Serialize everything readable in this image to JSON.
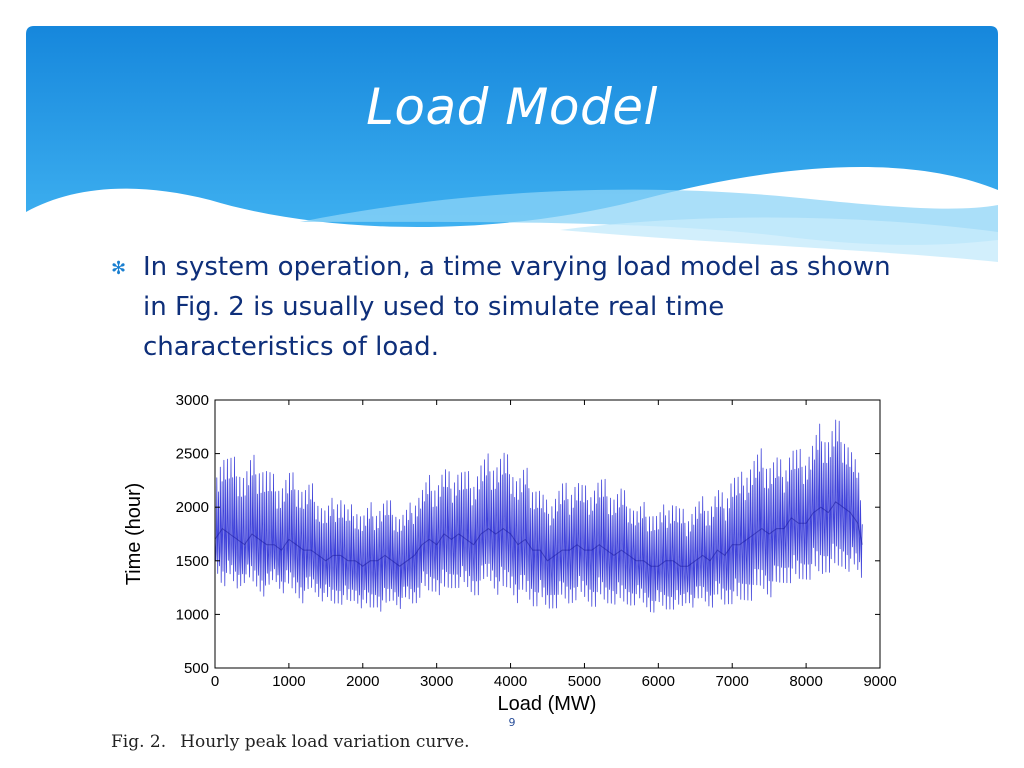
{
  "slide": {
    "title": "Load Model",
    "bullet": "In system operation, a time varying load model as shown in Fig. 2 is usually used to simulate real time characteristics of load.",
    "slide_number": "9",
    "caption_label": "Fig. 2.",
    "caption_text": "Hourly peak load variation curve."
  },
  "colors": {
    "header_blue": "#1e8fdf",
    "header_light": "#6cc4f4",
    "bullet_text": "#0e2f7a",
    "line": "#2b2fd6"
  },
  "chart_data": {
    "type": "line",
    "title": "",
    "xlabel": "Load (MW)",
    "ylabel": "Time (hour)",
    "xlim": [
      0,
      9000
    ],
    "ylim": [
      500,
      3000
    ],
    "xticks": [
      "0",
      "1000",
      "2000",
      "3000",
      "4000",
      "5000",
      "6000",
      "7000",
      "8000",
      "9000"
    ],
    "yticks": [
      "500",
      "1000",
      "1500",
      "2000",
      "2500",
      "3000"
    ],
    "grid": false,
    "series": [
      {
        "x": [
          0,
          100,
          200,
          300,
          400,
          500,
          600,
          700,
          800,
          900,
          1000,
          1100,
          1200,
          1300,
          1400,
          1500,
          1600,
          1700,
          1800,
          1900,
          2000,
          2100,
          2200,
          2300,
          2400,
          2500,
          2600,
          2700,
          2800,
          2900,
          3000,
          3100,
          3200,
          3300,
          3400,
          3500,
          3600,
          3700,
          3800,
          3900,
          4000,
          4100,
          4200,
          4300,
          4400,
          4500,
          4600,
          4700,
          4800,
          4900,
          5000,
          5100,
          5200,
          5300,
          5400,
          5500,
          5600,
          5700,
          5800,
          5900,
          6000,
          6100,
          6200,
          6300,
          6400,
          6500,
          6600,
          6700,
          6800,
          6900,
          7000,
          7100,
          7200,
          7300,
          7400,
          7500,
          7600,
          7700,
          7800,
          7900,
          8000,
          8100,
          8200,
          8300,
          8400,
          8500,
          8600,
          8700,
          8760
        ],
        "upper": [
          2400,
          2550,
          2500,
          2450,
          2350,
          2500,
          2450,
          2400,
          2300,
          2250,
          2350,
          2300,
          2200,
          2250,
          2100,
          2000,
          2100,
          2150,
          2000,
          2050,
          1950,
          2050,
          2000,
          2100,
          2050,
          1950,
          2000,
          2100,
          2200,
          2300,
          2250,
          2400,
          2300,
          2400,
          2350,
          2300,
          2450,
          2500,
          2450,
          2550,
          2450,
          2300,
          2400,
          2250,
          2200,
          2050,
          2150,
          2250,
          2200,
          2300,
          2200,
          2200,
          2300,
          2250,
          2150,
          2200,
          2100,
          2000,
          2050,
          2000,
          1950,
          2050,
          2100,
          2000,
          1950,
          2050,
          2100,
          2050,
          2200,
          2100,
          2350,
          2300,
          2400,
          2500,
          2550,
          2450,
          2500,
          2400,
          2600,
          2550,
          2500,
          2650,
          2800,
          2700,
          2850,
          2750,
          2600,
          2400,
          2000
        ],
        "lower": [
          1400,
          1250,
          1300,
          1200,
          1300,
          1250,
          1200,
          1150,
          1300,
          1200,
          1200,
          1150,
          1100,
          1200,
          1150,
          1100,
          1050,
          1100,
          1050,
          1100,
          1050,
          1000,
          1050,
          1000,
          1100,
          1050,
          1100,
          1050,
          1200,
          1150,
          1200,
          1150,
          1200,
          1250,
          1200,
          1150,
          1200,
          1300,
          1200,
          1150,
          1200,
          1100,
          1150,
          1050,
          1100,
          1000,
          1050,
          1100,
          1050,
          1150,
          1100,
          1050,
          1100,
          1050,
          1100,
          1050,
          1050,
          1100,
          1050,
          1000,
          1050,
          1000,
          1050,
          1000,
          1100,
          1050,
          1100,
          1050,
          1100,
          1050,
          1100,
          1050,
          1100,
          1150,
          1200,
          1150,
          1200,
          1250,
          1300,
          1250,
          1300,
          1350,
          1300,
          1400,
          1350,
          1400,
          1400,
          1350,
          1300
        ],
        "mid": [
          1700,
          1800,
          1750,
          1700,
          1650,
          1750,
          1700,
          1650,
          1650,
          1600,
          1700,
          1650,
          1600,
          1600,
          1550,
          1500,
          1550,
          1550,
          1500,
          1500,
          1450,
          1500,
          1500,
          1550,
          1500,
          1450,
          1500,
          1550,
          1650,
          1700,
          1650,
          1750,
          1700,
          1750,
          1700,
          1650,
          1750,
          1800,
          1750,
          1800,
          1750,
          1650,
          1700,
          1600,
          1600,
          1500,
          1550,
          1600,
          1600,
          1650,
          1600,
          1600,
          1650,
          1600,
          1550,
          1600,
          1550,
          1500,
          1500,
          1450,
          1450,
          1500,
          1500,
          1450,
          1450,
          1500,
          1550,
          1500,
          1600,
          1550,
          1650,
          1650,
          1700,
          1750,
          1800,
          1750,
          1800,
          1800,
          1900,
          1850,
          1850,
          1950,
          2000,
          1950,
          2050,
          2000,
          1950,
          1850,
          1650
        ]
      }
    ]
  }
}
